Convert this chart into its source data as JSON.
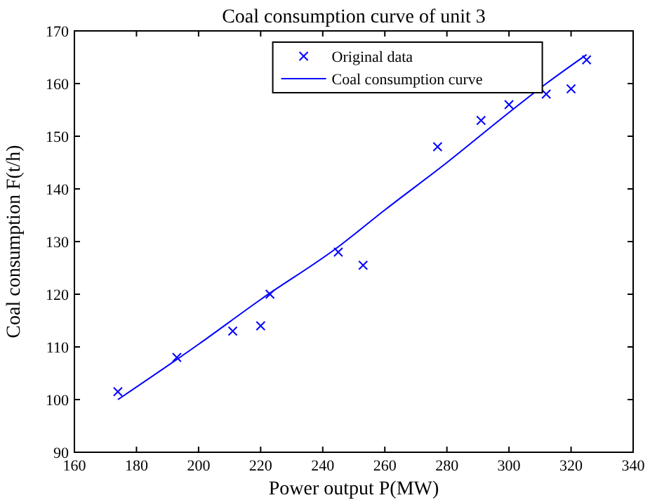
{
  "chart_data": {
    "type": "scatter",
    "title": "Coal consumption curve of unit 3",
    "xlabel": "Power output P(MW)",
    "ylabel": "Coal consumption F(t/h)",
    "xlim": [
      160,
      340
    ],
    "xticks": [
      160,
      180,
      200,
      220,
      240,
      260,
      280,
      300,
      320,
      340
    ],
    "ylim": [
      90,
      170
    ],
    "yticks": [
      90,
      100,
      110,
      120,
      130,
      140,
      150,
      160,
      170
    ],
    "grid": false,
    "legend": "top right",
    "series": [
      {
        "name": "Original data",
        "marker": "cross",
        "color": "#0000ff",
        "x": [
          174,
          193,
          211,
          220,
          223,
          245,
          253,
          277,
          291,
          300,
          312,
          320,
          325
        ],
        "values": [
          101.5,
          108,
          113,
          114,
          120,
          128,
          125.5,
          148,
          153,
          156,
          158,
          159,
          164.5
        ]
      },
      {
        "name": "Coal consumption curve",
        "type": "line",
        "marker": "none",
        "line_style": "solid",
        "color": "#0000ff",
        "x": [
          174,
          200,
          220,
          245,
          260,
          280,
          300,
          312,
          325
        ],
        "values": [
          100,
          110.5,
          119,
          129,
          136,
          145,
          154.5,
          160,
          165.5
        ]
      }
    ]
  }
}
